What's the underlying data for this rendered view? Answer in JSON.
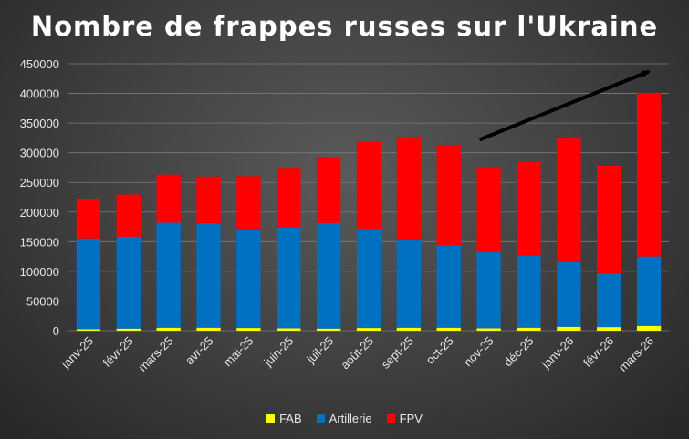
{
  "chart_data": {
    "type": "bar",
    "stacked": true,
    "title": "Nombre de frappes russes sur l'Ukraine",
    "xlabel": "",
    "ylabel": "",
    "ylim": [
      0,
      450000
    ],
    "yticks": [
      0,
      50000,
      100000,
      150000,
      200000,
      250000,
      300000,
      350000,
      400000,
      450000
    ],
    "grid": true,
    "legend_position": "bottom",
    "categories": [
      "janv-25",
      "févr-25",
      "mars-25",
      "avr-25",
      "mai-25",
      "juin-25",
      "juil-25",
      "août-25",
      "sept-25",
      "oct-25",
      "nov-25",
      "déc-25",
      "janv-26",
      "févr-26",
      "mars-26"
    ],
    "series": [
      {
        "name": "FAB",
        "color": "#ffff00",
        "values": [
          2500,
          3500,
          5000,
          5000,
          4500,
          4000,
          3500,
          4500,
          5000,
          5000,
          4000,
          5000,
          6500,
          6000,
          8000
        ]
      },
      {
        "name": "Artillerie",
        "color": "#0070c0",
        "values": [
          153000,
          155000,
          177000,
          176000,
          166000,
          170000,
          178000,
          167000,
          147000,
          139000,
          128000,
          122000,
          109000,
          90000,
          117000
        ]
      },
      {
        "name": "FPV",
        "color": "#ff0000",
        "values": [
          67000,
          71000,
          81000,
          79000,
          90000,
          99000,
          111000,
          148000,
          175000,
          169000,
          142000,
          158000,
          210000,
          182000,
          276000
        ]
      }
    ],
    "annotations": [
      {
        "type": "arrow",
        "direction": "upward trend",
        "color": "#000000"
      }
    ]
  }
}
